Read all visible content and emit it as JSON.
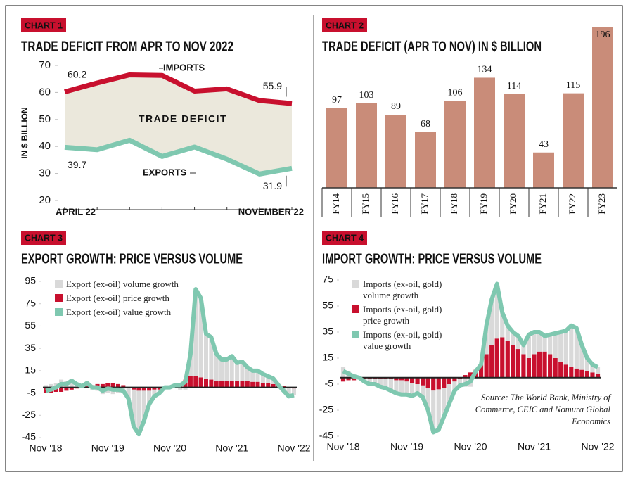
{
  "chart_data": [
    {
      "type": "line",
      "label": "CHART 1",
      "title": "TRADE DEFICIT FROM APR TO NOV 2022",
      "ylabel": "IN $ BILLION",
      "categories": [
        "APRIL 22",
        null,
        null,
        null,
        null,
        null,
        null,
        "NOVEMBER 22"
      ],
      "series": [
        {
          "name": "IMPORTS",
          "color": "#c8102e",
          "values": [
            60.2,
            63.5,
            66.5,
            66.3,
            60.5,
            61.3,
            57.0,
            55.9
          ]
        },
        {
          "name": "EXPORTS",
          "color": "#7fc8b0",
          "values": [
            39.7,
            38.8,
            42.3,
            36.3,
            39.8,
            35.3,
            29.8,
            31.9
          ]
        }
      ],
      "area_color": "#ebe8dc",
      "annotations": [
        "TRADE DEFICIT"
      ],
      "ylim": [
        20,
        70
      ],
      "yticks": [
        20,
        30,
        40,
        50,
        60,
        70
      ]
    },
    {
      "type": "bar",
      "label": "CHART 2",
      "title": "TRADE DEFICIT (APR TO NOV) IN $ BILLION",
      "categories": [
        "FY14",
        "FY15",
        "FY16",
        "FY17",
        "FY18",
        "FY19",
        "FY20",
        "FY21",
        "FY22",
        "FY23"
      ],
      "values": [
        97,
        103,
        89,
        68,
        106,
        134,
        114,
        43,
        115,
        196
      ],
      "color": "#c98c79"
    },
    {
      "type": "combo",
      "label": "CHART 3",
      "title": "EXPORT GROWTH: PRICE VERSUS VOLUME",
      "categories": [
        "Nov '18",
        null,
        null,
        null,
        null,
        null,
        null,
        null,
        null,
        null,
        null,
        null,
        "Nov '19",
        null,
        null,
        null,
        null,
        null,
        null,
        null,
        null,
        null,
        null,
        null,
        "Nov '20",
        null,
        null,
        null,
        null,
        null,
        null,
        null,
        null,
        null,
        null,
        null,
        "Nov '21",
        null,
        null,
        null,
        null,
        null,
        null,
        null,
        null,
        null,
        null,
        null,
        "Nov '22"
      ],
      "series": [
        {
          "name": "Export (ex-oil) volume growth",
          "type": "bar",
          "color": "#d9d9d9",
          "values": [
            2,
            3,
            4,
            7,
            6,
            8,
            4,
            1,
            3,
            -2,
            -3,
            -6,
            -5,
            -6,
            -5,
            -5,
            -10,
            -33,
            -39,
            -27,
            -12,
            -6,
            -3,
            1,
            0,
            0,
            -2,
            -2,
            20,
            78,
            71,
            40,
            38,
            24,
            19,
            19,
            22,
            16,
            17,
            12,
            10,
            10,
            8,
            6,
            5,
            0,
            -4,
            -8,
            -6
          ]
        },
        {
          "name": "Export (ex-oil) price growth",
          "type": "bar",
          "color": "#c8102e",
          "values": [
            -5,
            -5,
            -4,
            -4,
            -3,
            -2,
            -1,
            0,
            1,
            2,
            3,
            3,
            4,
            4,
            3,
            2,
            0,
            -2,
            -3,
            -3,
            -3,
            -2,
            -2,
            -1,
            0,
            2,
            4,
            7,
            10,
            10,
            9,
            8,
            7,
            6,
            6,
            6,
            6,
            6,
            6,
            6,
            5,
            5,
            4,
            4,
            3,
            2,
            1,
            0,
            -1
          ]
        },
        {
          "name": "Export (ex-oil) value growth",
          "type": "line",
          "color": "#7fc8b0",
          "values": [
            -3,
            -2,
            0,
            3,
            3,
            6,
            3,
            1,
            4,
            0,
            0,
            -3,
            -1,
            -2,
            -2,
            -3,
            -10,
            -35,
            -42,
            -30,
            -15,
            -8,
            -5,
            0,
            0,
            2,
            2,
            5,
            30,
            88,
            80,
            48,
            45,
            30,
            25,
            25,
            28,
            22,
            23,
            18,
            15,
            15,
            12,
            10,
            8,
            2,
            -3,
            -8,
            -7
          ]
        }
      ],
      "ylim": [
        -45,
        95
      ],
      "yticks": [
        -45,
        -25,
        -5,
        15,
        35,
        55,
        75,
        95
      ]
    },
    {
      "type": "combo",
      "label": "CHART 4",
      "title": "IMPORT GROWTH: PRICE VERSUS VOLUME",
      "categories": [
        "Nov '18",
        null,
        null,
        null,
        null,
        null,
        null,
        null,
        null,
        null,
        null,
        null,
        "Nov '19",
        null,
        null,
        null,
        null,
        null,
        null,
        null,
        null,
        null,
        null,
        null,
        "Nov '20",
        null,
        null,
        null,
        null,
        null,
        null,
        null,
        null,
        null,
        null,
        null,
        "Nov '21",
        null,
        null,
        null,
        null,
        null,
        null,
        null,
        null,
        null,
        null,
        null,
        "Nov '22"
      ],
      "series": [
        {
          "name": "Imports (ex-oil, gold) volume growth",
          "type": "bar",
          "color": "#d9d9d9",
          "values": [
            8,
            5,
            3,
            1,
            -2,
            -4,
            -4,
            -6,
            -7,
            -9,
            -10,
            -11,
            -10,
            -10,
            -7,
            -9,
            -17,
            -32,
            -31,
            -22,
            -15,
            -7,
            -5,
            -7,
            -7,
            -1,
            0,
            22,
            35,
            42,
            19,
            12,
            10,
            10,
            7,
            18,
            17,
            15,
            12,
            15,
            19,
            23,
            26,
            32,
            31,
            19,
            10,
            6,
            5
          ]
        },
        {
          "name": "Imports (ex-oil, gold) price growth",
          "type": "bar",
          "color": "#c8102e",
          "values": [
            -3,
            -2,
            -2,
            -1,
            -1,
            -1,
            -1,
            -1,
            -1,
            -1,
            -2,
            -2,
            -3,
            -4,
            -5,
            -6,
            -8,
            -10,
            -9,
            -8,
            -5,
            -3,
            -1,
            2,
            4,
            6,
            10,
            18,
            25,
            30,
            31,
            28,
            25,
            22,
            18,
            15,
            18,
            20,
            20,
            18,
            15,
            12,
            10,
            8,
            7,
            6,
            5,
            4,
            3
          ]
        },
        {
          "name": "Imports (ex-oil, gold) value growth",
          "type": "line",
          "color": "#7fc8b0",
          "values": [
            5,
            3,
            1,
            0,
            -3,
            -5,
            -5,
            -7,
            -8,
            -10,
            -12,
            -13,
            -13,
            -14,
            -12,
            -15,
            -25,
            -42,
            -40,
            -30,
            -20,
            -10,
            -6,
            -5,
            -3,
            5,
            10,
            40,
            60,
            72,
            50,
            40,
            35,
            32,
            25,
            33,
            35,
            35,
            32,
            33,
            34,
            35,
            36,
            40,
            38,
            25,
            15,
            10,
            8
          ]
        }
      ],
      "source": "Source: The World Bank, Ministry of Commerce, CEIC and Nomura Global Economics",
      "ylim": [
        -45,
        75
      ],
      "yticks": [
        -45,
        -25,
        -5,
        15,
        35,
        55,
        75
      ]
    }
  ]
}
